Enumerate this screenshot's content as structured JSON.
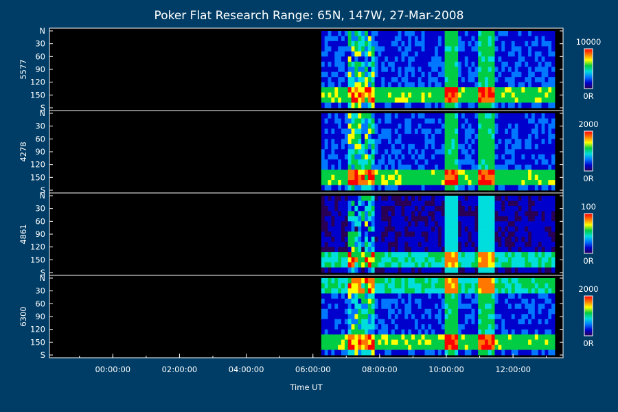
{
  "chart_data": {
    "type": "heatmap",
    "title": "Poker Flat Research Range: 65N, 147W, 27-Mar-2008",
    "xlabel": "Time UT",
    "x_tick_labels": [
      "00:00:00",
      "02:00:00",
      "04:00:00",
      "06:00:00",
      "08:00:00",
      "10:00:00",
      "12:00:00"
    ],
    "x_tick_hours": [
      0,
      2,
      4,
      6,
      8,
      10,
      12
    ],
    "xlim_hours": [
      -1.9,
      13.5
    ],
    "data_start_hour": 6.25,
    "y_axis_labels": [
      "N",
      "30",
      "60",
      "90",
      "120",
      "150",
      "S"
    ],
    "y_axis_values": [
      0,
      30,
      60,
      90,
      120,
      150,
      180
    ],
    "colormap": [
      "#2a0055",
      "#0000cc",
      "#0077ff",
      "#00dddd",
      "#00cc44",
      "#ffff00",
      "#ff7700",
      "#ff0000"
    ],
    "panels": [
      {
        "name": "5577",
        "colorbar_max": "10000",
        "colorbar_min": "0R"
      },
      {
        "name": "4278",
        "colorbar_max": "2000",
        "colorbar_min": "0R"
      },
      {
        "name": "4861",
        "colorbar_max": "100",
        "colorbar_min": "0R"
      },
      {
        "name": "6300",
        "colorbar_max": "2000",
        "colorbar_min": "0R"
      }
    ]
  }
}
